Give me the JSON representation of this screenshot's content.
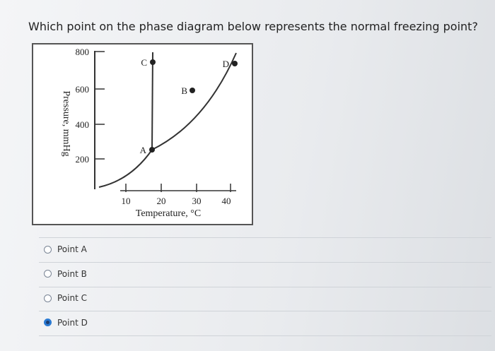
{
  "question": "Which point on the phase diagram below represents the normal freezing point?",
  "diagram": {
    "y_axis_label": "Pressure, mmHg",
    "y_tick_labels": [
      800,
      600,
      400,
      200
    ],
    "x_axis_label": "Temperature, °C",
    "x_tick_labels": [
      10,
      20,
      30,
      40
    ],
    "points": [
      "A",
      "B",
      "C",
      "D"
    ]
  },
  "options": [
    {
      "label": "Point A",
      "selected": false
    },
    {
      "label": "Point B",
      "selected": false
    },
    {
      "label": "Point C",
      "selected": false
    },
    {
      "label": "Point D",
      "selected": true
    }
  ]
}
